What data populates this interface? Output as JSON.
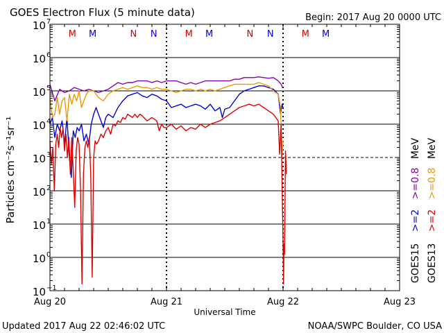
{
  "chart_data": {
    "type": "line",
    "title": "GOES Electron Flux (5 minute data)",
    "begin_label": "Begin: 2017 Aug 20 0000 UTC",
    "xlabel": "Universal Time",
    "ylabel": "Particles cm⁻²s⁻¹sr⁻¹",
    "footer_left": "Updated 2017 Aug 22 02:46:02 UTC",
    "footer_right": "NOAA/SWPC Boulder, CO USA",
    "x_unit": "hours since 2017-08-20 00:00 UTC",
    "xlim": [
      0,
      72
    ],
    "ylim_log10": [
      -1,
      7
    ],
    "x_ticks": [
      {
        "x": 0,
        "label": "Aug 20"
      },
      {
        "x": 24,
        "label": "Aug 21"
      },
      {
        "x": 48,
        "label": "Aug 22"
      },
      {
        "x": 72,
        "label": "Aug 23"
      }
    ],
    "y_ticks": [
      {
        "exp": 7,
        "label": "10"
      },
      {
        "exp": 6,
        "label": "10"
      },
      {
        "exp": 5,
        "label": "10"
      },
      {
        "exp": 4,
        "label": "10"
      },
      {
        "exp": 3,
        "label": "10"
      },
      {
        "exp": 2,
        "label": "10"
      },
      {
        "exp": 1,
        "label": "10"
      },
      {
        "exp": 0,
        "label": "10"
      },
      {
        "exp": -1,
        "label": "10"
      }
    ],
    "y_tick_exponents": [
      "7",
      "6",
      "5",
      "4",
      "3",
      "2",
      "1",
      "0",
      "−1"
    ],
    "solid_gridlines_exp": [
      6,
      5,
      4,
      2,
      1,
      0
    ],
    "dashed_gridlines_exp": [
      3
    ],
    "day_dividers_x": [
      24,
      48
    ],
    "mn_markers": [
      {
        "x": 4.6,
        "label": "M",
        "color": "#dd0000"
      },
      {
        "x": 8.8,
        "label": "M",
        "color": "#0000dd"
      },
      {
        "x": 17.2,
        "label": "N",
        "color": "#dd0000"
      },
      {
        "x": 21.4,
        "label": "N",
        "color": "#0000dd"
      },
      {
        "x": 28.6,
        "label": "M",
        "color": "#dd0000"
      },
      {
        "x": 32.8,
        "label": "M",
        "color": "#0000dd"
      },
      {
        "x": 41.2,
        "label": "N",
        "color": "#dd0000"
      },
      {
        "x": 45.4,
        "label": "N",
        "color": "#0000dd"
      },
      {
        "x": 52.6,
        "label": "M",
        "color": "#dd0000"
      },
      {
        "x": 56.8,
        "label": "M",
        "color": "#0000dd"
      }
    ],
    "legend_position": "right-vertical",
    "legend": [
      {
        "text": "GOES15",
        "color": "#000000"
      },
      {
        "text": ">=2",
        "color": "#0000dd"
      },
      {
        "text": ">=0.8",
        "color": "#8800aa"
      },
      {
        "text": "MeV",
        "color": "#000000"
      },
      {
        "text": "GOES13",
        "color": "#000000"
      },
      {
        "text": ">=2",
        "color": "#dd0000"
      },
      {
        "text": ">=0.8",
        "color": "#ee9900"
      },
      {
        "text": "MeV",
        "color": "#000000"
      }
    ],
    "series": [
      {
        "name": "GOES15 >=0.8 MeV",
        "color": "#8800aa",
        "points": [
          [
            0,
            5.2
          ],
          [
            1,
            4.7
          ],
          [
            2,
            5.05
          ],
          [
            3,
            4.95
          ],
          [
            4,
            5.0
          ],
          [
            5,
            5.1
          ],
          [
            6,
            5.05
          ],
          [
            7,
            5.0
          ],
          [
            8,
            5.05
          ],
          [
            9,
            5.0
          ],
          [
            10,
            4.95
          ],
          [
            11,
            5.0
          ],
          [
            12,
            5.05
          ],
          [
            13,
            5.15
          ],
          [
            14,
            5.25
          ],
          [
            15,
            5.2
          ],
          [
            16,
            5.25
          ],
          [
            17,
            5.25
          ],
          [
            18,
            5.3
          ],
          [
            19,
            5.3
          ],
          [
            20,
            5.3
          ],
          [
            21,
            5.25
          ],
          [
            22,
            5.3
          ],
          [
            23,
            5.25
          ],
          [
            24,
            5.3
          ],
          [
            25,
            5.3
          ],
          [
            26,
            5.3
          ],
          [
            27,
            5.25
          ],
          [
            28,
            5.2
          ],
          [
            29,
            5.25
          ],
          [
            30,
            5.2
          ],
          [
            31,
            5.25
          ],
          [
            32,
            5.3
          ],
          [
            33,
            5.3
          ],
          [
            34,
            5.3
          ],
          [
            35,
            5.3
          ],
          [
            36,
            5.3
          ],
          [
            37,
            5.3
          ],
          [
            38,
            5.35
          ],
          [
            39,
            5.35
          ],
          [
            40,
            5.4
          ],
          [
            41,
            5.4
          ],
          [
            42,
            5.4
          ],
          [
            43,
            5.42
          ],
          [
            44,
            5.4
          ],
          [
            45,
            5.38
          ],
          [
            46,
            5.4
          ],
          [
            47,
            5.3
          ],
          [
            47.6,
            5.2
          ],
          [
            47.9,
            5.1
          ]
        ]
      },
      {
        "name": "GOES15 >=2 MeV",
        "color": "#0000dd",
        "points": [
          [
            0,
            4.0
          ],
          [
            0.5,
            4.2
          ],
          [
            1,
            3.6
          ],
          [
            1.5,
            4.0
          ],
          [
            2,
            3.8
          ],
          [
            2.5,
            4.1
          ],
          [
            3,
            3.4
          ],
          [
            3.5,
            4.2
          ],
          [
            4,
            3.0
          ],
          [
            4.4,
            2.4
          ],
          [
            4.8,
            3.8
          ],
          [
            5.2,
            3.6
          ],
          [
            5.6,
            3.9
          ],
          [
            6,
            3.8
          ],
          [
            6.5,
            4.0
          ],
          [
            7,
            3.5
          ],
          [
            7.5,
            3.7
          ],
          [
            8,
            3.4
          ],
          [
            8.5,
            4.0
          ],
          [
            9,
            4.3
          ],
          [
            9.5,
            4.5
          ],
          [
            10,
            4.3
          ],
          [
            10.5,
            4.1
          ],
          [
            11,
            3.9
          ],
          [
            11.5,
            4.2
          ],
          [
            12,
            4.3
          ],
          [
            13,
            4.2
          ],
          [
            14,
            4.5
          ],
          [
            15,
            4.7
          ],
          [
            16,
            4.85
          ],
          [
            17,
            4.9
          ],
          [
            18,
            4.95
          ],
          [
            19,
            4.85
          ],
          [
            20,
            4.8
          ],
          [
            21,
            4.9
          ],
          [
            22,
            4.85
          ],
          [
            23,
            4.75
          ],
          [
            24,
            4.7
          ],
          [
            25,
            4.5
          ],
          [
            26,
            4.55
          ],
          [
            27,
            4.6
          ],
          [
            28,
            4.5
          ],
          [
            29,
            4.55
          ],
          [
            30,
            4.6
          ],
          [
            31,
            4.55
          ],
          [
            32,
            4.45
          ],
          [
            33,
            4.6
          ],
          [
            34,
            4.4
          ],
          [
            35,
            4.5
          ],
          [
            35.5,
            4.2
          ],
          [
            36,
            4.45
          ],
          [
            37,
            4.5
          ],
          [
            38,
            4.7
          ],
          [
            39,
            4.9
          ],
          [
            40,
            5.0
          ],
          [
            41,
            5.05
          ],
          [
            42,
            5.1
          ],
          [
            43,
            5.15
          ],
          [
            44,
            5.15
          ],
          [
            45,
            5.1
          ],
          [
            46,
            5.05
          ],
          [
            47,
            4.9
          ],
          [
            47.5,
            4.3
          ],
          [
            47.8,
            4.6
          ],
          [
            48,
            4.5
          ]
        ]
      },
      {
        "name": "GOES13 >=0.8 MeV",
        "color": "#ee9900",
        "points": [
          [
            0,
            4.8
          ],
          [
            0.5,
            4.2
          ],
          [
            1,
            4.3
          ],
          [
            1.5,
            4.8
          ],
          [
            2,
            4.3
          ],
          [
            2.5,
            4.7
          ],
          [
            3,
            4.8
          ],
          [
            3.5,
            4.1
          ],
          [
            4,
            4.9
          ],
          [
            4.5,
            4.6
          ],
          [
            5,
            4.9
          ],
          [
            5.5,
            4.7
          ],
          [
            6,
            5.0
          ],
          [
            6.5,
            4.5
          ],
          [
            7,
            4.7
          ],
          [
            7.5,
            4.9
          ],
          [
            8,
            5.0
          ],
          [
            9,
            5.0
          ],
          [
            10,
            4.8
          ],
          [
            11,
            4.7
          ],
          [
            12,
            4.9
          ],
          [
            13,
            5.0
          ],
          [
            14,
            5.05
          ],
          [
            15,
            5.1
          ],
          [
            16,
            5.05
          ],
          [
            17,
            5.1
          ],
          [
            18,
            5.15
          ],
          [
            19,
            5.1
          ],
          [
            20,
            5.1
          ],
          [
            21,
            5.05
          ],
          [
            22,
            5.1
          ],
          [
            23,
            5.05
          ],
          [
            24,
            5.05
          ],
          [
            25,
            5.0
          ],
          [
            26,
            4.95
          ],
          [
            27,
            5.0
          ],
          [
            28,
            5.05
          ],
          [
            29,
            5.05
          ],
          [
            30,
            5.0
          ],
          [
            31,
            5.05
          ],
          [
            32,
            5.0
          ],
          [
            33,
            5.05
          ],
          [
            34,
            5.0
          ],
          [
            35,
            5.05
          ],
          [
            36,
            5.1
          ],
          [
            37,
            5.15
          ],
          [
            38,
            5.2
          ],
          [
            39,
            5.2
          ],
          [
            40,
            5.2
          ],
          [
            41,
            5.2
          ],
          [
            42,
            5.2
          ],
          [
            43,
            5.25
          ],
          [
            44,
            5.2
          ],
          [
            45,
            5.15
          ],
          [
            46,
            5.0
          ],
          [
            47,
            4.9
          ],
          [
            47.5,
            4.5
          ],
          [
            47.8,
            3.0
          ],
          [
            48,
            3.5
          ]
        ]
      },
      {
        "name": "GOES13 >=2 MeV",
        "color": "#dd0000",
        "points": [
          [
            0,
            3.5
          ],
          [
            0.3,
            2.8
          ],
          [
            0.6,
            3.3
          ],
          [
            0.9,
            2.0
          ],
          [
            1.2,
            3.4
          ],
          [
            1.5,
            3.7
          ],
          [
            1.8,
            3.3
          ],
          [
            2.1,
            3.9
          ],
          [
            2.4,
            3.6
          ],
          [
            2.7,
            3.9
          ],
          [
            3,
            3.2
          ],
          [
            3.3,
            3.7
          ],
          [
            3.6,
            3.0
          ],
          [
            3.9,
            3.6
          ],
          [
            4.2,
            2.5
          ],
          [
            4.5,
            3.6
          ],
          [
            4.8,
            2.6
          ],
          [
            5.1,
            1.5
          ],
          [
            5.4,
            3.2
          ],
          [
            5.7,
            3.6
          ],
          [
            6,
            3.4
          ],
          [
            6.3,
            2.0
          ],
          [
            6.6,
            -0.8
          ],
          [
            6.9,
            2.5
          ],
          [
            7.2,
            3.3
          ],
          [
            7.5,
            3.5
          ],
          [
            7.8,
            3.3
          ],
          [
            8.1,
            3.6
          ],
          [
            8.4,
            2.5
          ],
          [
            8.7,
            -0.6
          ],
          [
            9,
            3.0
          ],
          [
            9.3,
            3.5
          ],
          [
            9.6,
            3.4
          ],
          [
            10,
            3.5
          ],
          [
            10.5,
            3.7
          ],
          [
            11,
            3.6
          ],
          [
            11.5,
            3.8
          ],
          [
            12,
            3.9
          ],
          [
            12.5,
            3.7
          ],
          [
            13,
            4.0
          ],
          [
            13.5,
            3.95
          ],
          [
            14,
            4.1
          ],
          [
            14.5,
            4.05
          ],
          [
            15,
            4.2
          ],
          [
            15.5,
            4.15
          ],
          [
            16,
            4.3
          ],
          [
            16.5,
            4.25
          ],
          [
            17,
            4.2
          ],
          [
            17.5,
            4.3
          ],
          [
            18,
            4.2
          ],
          [
            18.5,
            4.3
          ],
          [
            19,
            4.25
          ],
          [
            20,
            4.1
          ],
          [
            21,
            4.2
          ],
          [
            22,
            4.1
          ],
          [
            22.5,
            3.8
          ],
          [
            23,
            4.0
          ],
          [
            23.5,
            3.9
          ],
          [
            24,
            3.9
          ],
          [
            25,
            4.0
          ],
          [
            26,
            3.85
          ],
          [
            27,
            3.95
          ],
          [
            28,
            3.8
          ],
          [
            29,
            3.9
          ],
          [
            30,
            3.85
          ],
          [
            31,
            4.0
          ],
          [
            32,
            3.9
          ],
          [
            33,
            4.0
          ],
          [
            34,
            4.05
          ],
          [
            35,
            4.1
          ],
          [
            36,
            4.2
          ],
          [
            37,
            4.3
          ],
          [
            38,
            4.4
          ],
          [
            39,
            4.5
          ],
          [
            40,
            4.55
          ],
          [
            41,
            4.6
          ],
          [
            42,
            4.55
          ],
          [
            43,
            4.6
          ],
          [
            44,
            4.5
          ],
          [
            45,
            4.4
          ],
          [
            46,
            4.3
          ],
          [
            47,
            4.1
          ],
          [
            47.3,
            3.1
          ],
          [
            47.6,
            4.0
          ],
          [
            47.8,
            2.2
          ],
          [
            48,
            0.5
          ],
          [
            48.1,
            -0.8
          ],
          [
            48.2,
            0.4
          ],
          [
            48.3,
            0.1
          ],
          [
            48.5,
            3.2
          ],
          [
            48.7,
            2.5
          ]
        ]
      }
    ]
  }
}
